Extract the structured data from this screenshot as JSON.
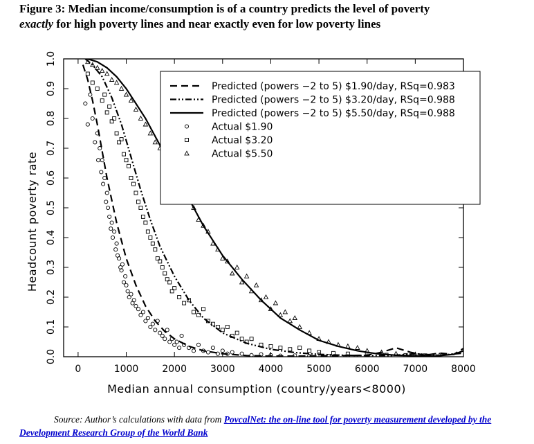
{
  "figure": {
    "title_line1": "Figure 3:  Median income/consumption is of a country predicts the level of poverty",
    "title_line2_italic": "exactly",
    "title_line2_rest": " for high poverty lines and near exactly even for low poverty lines"
  },
  "source": {
    "prefix": "Source:  Author’s calculations with data from ",
    "link_text": "PovcalNet: the on-line tool for poverty measurement developed by the Development Research Group of the World Bank"
  },
  "chart_data": {
    "type": "scatter",
    "title": "",
    "xlabel": "Median annual consumption (country/years<8000)",
    "ylabel": "Headcount poverty rate",
    "xlim": [
      -300,
      8000
    ],
    "ylim": [
      0,
      1.0
    ],
    "x_ticks": [
      0,
      1000,
      2000,
      3000,
      4000,
      5000,
      6000,
      7000,
      8000
    ],
    "y_ticks": [
      "0.0",
      "0.1",
      "0.2",
      "0.3",
      "0.4",
      "0.5",
      "0.6",
      "0.7",
      "0.8",
      "0.9",
      "1.0"
    ],
    "grid": false,
    "legend_position": "top-right",
    "legend": [
      {
        "label": "Predicted (powers −2 to 5) $1.90/day, RSq=0.983",
        "style": "dashed"
      },
      {
        "label": "Predicted (powers −2 to 5) $3.20/day, RSq=0.988",
        "style": "dash-dot"
      },
      {
        "label": "Predicted (powers −2 to 5) $5.50/day, RSq=0.988",
        "style": "solid"
      },
      {
        "label": "Actual $1.90",
        "marker": "circle"
      },
      {
        "label": "Actual $3.20",
        "marker": "square"
      },
      {
        "label": "Actual $5.50",
        "marker": "triangle"
      }
    ],
    "series": [
      {
        "name": "Predicted (powers −2 to 5) $1.90/day, RSq=0.983",
        "kind": "line",
        "style": "dashed",
        "x": [
          100,
          200,
          300,
          400,
          500,
          600,
          800,
          1000,
          1200,
          1400,
          1600,
          1800,
          2000,
          2300,
          2600,
          3000,
          3500,
          4000,
          4500,
          5000,
          5500,
          6000,
          6300,
          6600,
          6900,
          7200,
          7500,
          7800,
          8000
        ],
        "y": [
          0.98,
          0.93,
          0.86,
          0.78,
          0.69,
          0.6,
          0.45,
          0.33,
          0.24,
          0.17,
          0.12,
          0.085,
          0.06,
          0.035,
          0.02,
          0.01,
          0.004,
          0.002,
          0.002,
          0.003,
          0.004,
          0.005,
          0.015,
          0.03,
          0.015,
          0.005,
          0.012,
          0.008,
          0.028
        ]
      },
      {
        "name": "Predicted (powers −2 to 5) $3.20/day, RSq=0.988",
        "kind": "line",
        "style": "dash-dot",
        "x": [
          150,
          300,
          500,
          700,
          900,
          1100,
          1300,
          1500,
          1700,
          2000,
          2300,
          2600,
          3000,
          3500,
          4000,
          4500,
          5000,
          5500,
          6000,
          6500,
          7000,
          7500,
          8000
        ],
        "y": [
          1.0,
          0.98,
          0.94,
          0.87,
          0.78,
          0.67,
          0.56,
          0.46,
          0.37,
          0.27,
          0.19,
          0.13,
          0.08,
          0.045,
          0.025,
          0.014,
          0.008,
          0.005,
          0.004,
          0.004,
          0.01,
          0.005,
          0.012
        ]
      },
      {
        "name": "Predicted (powers −2 to 5) $5.50/day, RSq=0.988",
        "kind": "line",
        "style": "solid",
        "x": [
          200,
          400,
          600,
          800,
          1000,
          1200,
          1400,
          1600,
          1800,
          2000,
          2300,
          2600,
          3000,
          3400,
          3800,
          4200,
          4600,
          5000,
          5400,
          5800,
          6200,
          6600,
          7000,
          7400,
          7800,
          8000
        ],
        "y": [
          1.0,
          0.99,
          0.97,
          0.94,
          0.9,
          0.85,
          0.8,
          0.74,
          0.68,
          0.62,
          0.53,
          0.44,
          0.34,
          0.26,
          0.19,
          0.13,
          0.09,
          0.055,
          0.035,
          0.02,
          0.01,
          0.005,
          0.003,
          0.002,
          0.008,
          0.02
        ]
      },
      {
        "name": "Actual $1.90",
        "kind": "points",
        "marker": "circle",
        "x": [
          150,
          200,
          250,
          300,
          350,
          400,
          420,
          450,
          480,
          500,
          520,
          550,
          580,
          600,
          620,
          650,
          680,
          700,
          720,
          750,
          780,
          800,
          820,
          850,
          880,
          900,
          920,
          950,
          980,
          1000,
          1030,
          1060,
          1100,
          1130,
          1160,
          1200,
          1250,
          1300,
          1350,
          1400,
          1450,
          1500,
          1550,
          1600,
          1650,
          1700,
          1750,
          1800,
          1850,
          1900,
          1950,
          2000,
          2050,
          2100,
          2150,
          2200,
          2300,
          2400,
          2500,
          2600,
          2700,
          2800,
          2900,
          3000,
          3100,
          3200,
          3400,
          3600,
          3800,
          4000,
          4200,
          4500,
          4800,
          5200,
          5600,
          6000
        ],
        "y": [
          0.85,
          0.78,
          0.88,
          0.8,
          0.72,
          0.75,
          0.66,
          0.7,
          0.62,
          0.66,
          0.58,
          0.6,
          0.52,
          0.55,
          0.5,
          0.47,
          0.43,
          0.45,
          0.4,
          0.42,
          0.36,
          0.38,
          0.34,
          0.33,
          0.3,
          0.29,
          0.31,
          0.25,
          0.27,
          0.24,
          0.22,
          0.2,
          0.21,
          0.18,
          0.19,
          0.17,
          0.16,
          0.14,
          0.15,
          0.12,
          0.13,
          0.1,
          0.11,
          0.09,
          0.12,
          0.08,
          0.07,
          0.06,
          0.09,
          0.05,
          0.06,
          0.04,
          0.05,
          0.03,
          0.07,
          0.04,
          0.03,
          0.02,
          0.04,
          0.02,
          0.015,
          0.03,
          0.01,
          0.02,
          0.01,
          0.015,
          0.01,
          0.005,
          0.008,
          0.005,
          0.003,
          0.004,
          0.002,
          0.002,
          0.001,
          0.001
        ]
      },
      {
        "name": "Actual $3.20",
        "kind": "points",
        "marker": "square",
        "x": [
          200,
          300,
          400,
          500,
          550,
          600,
          650,
          700,
          750,
          800,
          850,
          900,
          950,
          1000,
          1050,
          1100,
          1150,
          1200,
          1250,
          1300,
          1350,
          1400,
          1450,
          1500,
          1550,
          1600,
          1650,
          1700,
          1750,
          1800,
          1850,
          1900,
          1950,
          2000,
          2100,
          2200,
          2300,
          2400,
          2500,
          2600,
          2700,
          2800,
          2900,
          3000,
          3100,
          3200,
          3300,
          3400,
          3500,
          3600,
          3800,
          4000,
          4200,
          4400,
          4600,
          4800,
          5000,
          5300,
          5600,
          6000,
          6400,
          6800,
          7200
        ],
        "y": [
          0.95,
          0.92,
          0.9,
          0.86,
          0.88,
          0.82,
          0.84,
          0.79,
          0.8,
          0.75,
          0.72,
          0.73,
          0.68,
          0.66,
          0.64,
          0.6,
          0.58,
          0.55,
          0.52,
          0.5,
          0.47,
          0.45,
          0.42,
          0.4,
          0.38,
          0.36,
          0.33,
          0.32,
          0.3,
          0.28,
          0.26,
          0.25,
          0.22,
          0.23,
          0.2,
          0.18,
          0.19,
          0.15,
          0.14,
          0.16,
          0.12,
          0.11,
          0.1,
          0.09,
          0.1,
          0.07,
          0.08,
          0.06,
          0.05,
          0.06,
          0.04,
          0.035,
          0.03,
          0.025,
          0.03,
          0.02,
          0.015,
          0.012,
          0.01,
          0.008,
          0.006,
          0.005,
          0.004
        ]
      },
      {
        "name": "Actual $5.50",
        "kind": "points",
        "marker": "triangle",
        "x": [
          200,
          300,
          400,
          500,
          600,
          700,
          800,
          900,
          1000,
          1100,
          1200,
          1300,
          1400,
          1500,
          1600,
          1700,
          1800,
          1900,
          2000,
          2100,
          2200,
          2300,
          2400,
          2500,
          2600,
          2700,
          2800,
          2900,
          3000,
          3100,
          3200,
          3300,
          3400,
          3500,
          3600,
          3700,
          3800,
          3900,
          4000,
          4100,
          4200,
          4300,
          4400,
          4500,
          4600,
          4800,
          5000,
          5200,
          5400,
          5600,
          5800,
          6000,
          6300,
          6600,
          7000,
          7500
        ],
        "y": [
          0.99,
          0.98,
          0.97,
          0.96,
          0.95,
          0.93,
          0.92,
          0.9,
          0.88,
          0.86,
          0.83,
          0.8,
          0.78,
          0.75,
          0.72,
          0.7,
          0.66,
          0.64,
          0.6,
          0.58,
          0.55,
          0.52,
          0.5,
          0.46,
          0.44,
          0.42,
          0.38,
          0.36,
          0.33,
          0.32,
          0.28,
          0.3,
          0.25,
          0.27,
          0.22,
          0.24,
          0.19,
          0.2,
          0.16,
          0.18,
          0.14,
          0.15,
          0.12,
          0.13,
          0.1,
          0.08,
          0.06,
          0.05,
          0.04,
          0.035,
          0.03,
          0.02,
          0.015,
          0.01,
          0.008,
          0.005
        ]
      }
    ]
  }
}
